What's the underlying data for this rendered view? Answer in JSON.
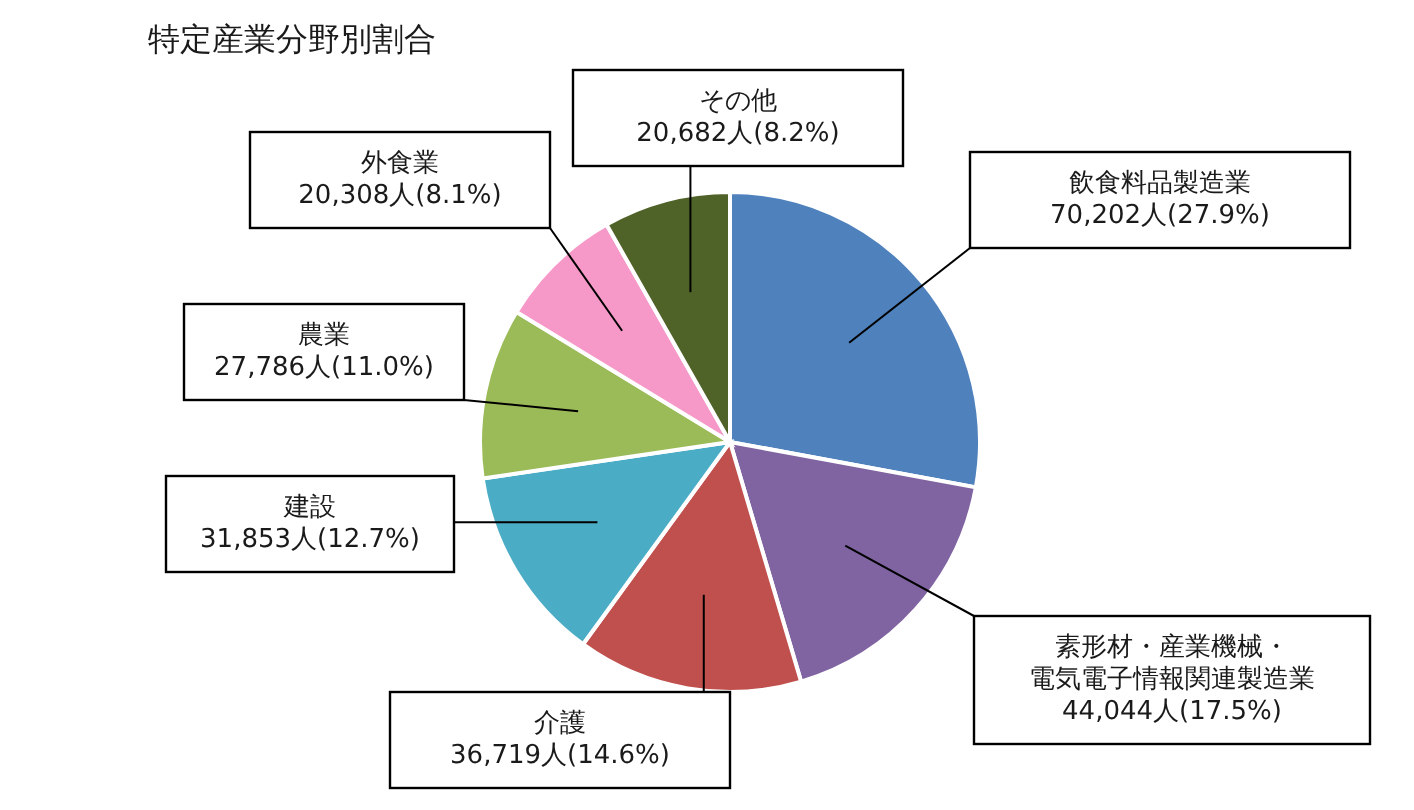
{
  "chart_data": {
    "type": "pie",
    "title": "特定産業分野別割合",
    "categories": [
      "飲食料品製造業",
      "素形材・産業機械・電気電子情報関連製造業",
      "介護",
      "建設",
      "農業",
      "外食業",
      "その他"
    ],
    "values": [
      70202,
      44044,
      36719,
      31853,
      27786,
      20308,
      20682
    ],
    "colors": [
      "#4f81bd",
      "#8064a2",
      "#c0504d",
      "#4bacc6",
      "#9bbb59",
      "#f799c8",
      "#4f6228"
    ],
    "value_labels": [
      "70,202人(27.9%)",
      "44,044人(17.5%)",
      "36,719人(14.6%)",
      "31,853人(12.7%)",
      "27,786人(11.0%)",
      "20,308人(8.1%)",
      "20,682人(8.2%)"
    ]
  }
}
